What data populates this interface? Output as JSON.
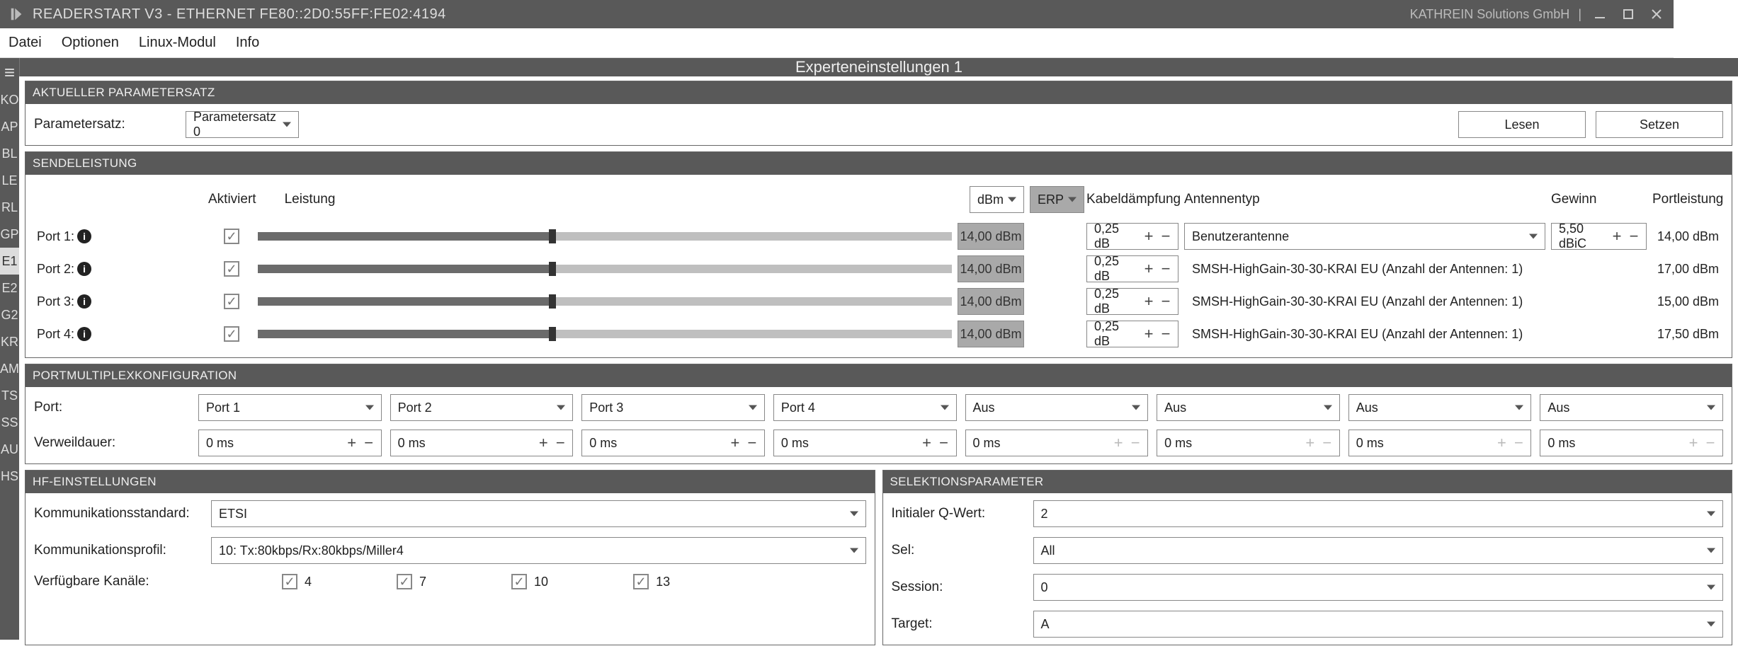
{
  "title": "READERSTART V3 - ETHERNET FE80::2D0:55FF:FE02:4194",
  "vendor": "KATHREIN Solutions GmbH",
  "menu": {
    "items": [
      "Datei",
      "Optionen",
      "Linux-Modul",
      "Info"
    ]
  },
  "sidebar": {
    "tabs": [
      "KO",
      "AP",
      "BL",
      "LE",
      "RL",
      "GP",
      "E1",
      "E2",
      "G2",
      "KR",
      "AM",
      "TS",
      "SS",
      "AU",
      "HS"
    ],
    "active": "E1"
  },
  "page_title": "Experteneinstellungen 1",
  "param": {
    "section": "AKTUELLER PARAMETERSATZ",
    "label": "Parametersatz:",
    "value": "Parametersatz 0",
    "read_btn": "Lesen",
    "set_btn": "Setzen"
  },
  "send": {
    "section": "SENDELEISTUNG",
    "head": {
      "aktiviert": "Aktiviert",
      "leistung": "Leistung",
      "unit": "dBm",
      "mode": "ERP",
      "cable": "Kabeldämpfung",
      "anttype": "Antennentyp",
      "gain": "Gewinn",
      "portpower": "Portleistung"
    },
    "slider": {
      "min": 0,
      "max": 33,
      "fill_color": "#6b6b6b",
      "track_color": "#bfbfbf",
      "thumb_color": "#333333"
    },
    "rows": [
      {
        "label": "Port 1:",
        "active": true,
        "value": 14.0,
        "dbm": "14,00 dBm",
        "cable": "0,25 dB",
        "antenna_is_select": true,
        "antenna": "Benutzerantenne",
        "gain": "5,50 dBiC",
        "portpower": "14,00 dBm"
      },
      {
        "label": "Port 2:",
        "active": true,
        "value": 14.0,
        "dbm": "14,00 dBm",
        "cable": "0,25 dB",
        "antenna_is_select": false,
        "antenna": "SMSH-HighGain-30-30-KRAI EU (Anzahl der Antennen: 1)",
        "gain": "",
        "portpower": "17,00 dBm"
      },
      {
        "label": "Port 3:",
        "active": true,
        "value": 14.0,
        "dbm": "14,00 dBm",
        "cable": "0,25 dB",
        "antenna_is_select": false,
        "antenna": "SMSH-HighGain-30-30-KRAI EU (Anzahl der Antennen: 1)",
        "gain": "",
        "portpower": "15,00 dBm"
      },
      {
        "label": "Port 4:",
        "active": true,
        "value": 14.0,
        "dbm": "14,00 dBm",
        "cable": "0,25 dB",
        "antenna_is_select": false,
        "antenna": "SMSH-HighGain-30-30-KRAI EU (Anzahl der Antennen: 1)",
        "gain": "",
        "portpower": "17,50 dBm"
      }
    ]
  },
  "mux": {
    "section": "PORTMULTIPLEXKONFIGURATION",
    "port_label": "Port:",
    "dwell_label": "Verweildauer:",
    "ports": [
      "Port 1",
      "Port 2",
      "Port 3",
      "Port 4",
      "Aus",
      "Aus",
      "Aus",
      "Aus"
    ],
    "dwell": [
      "0 ms",
      "0 ms",
      "0 ms",
      "0 ms",
      "0 ms",
      "0 ms",
      "0 ms",
      "0 ms"
    ],
    "dwell_editable": [
      true,
      true,
      true,
      true,
      false,
      false,
      false,
      false
    ]
  },
  "hf": {
    "section": "HF-EINSTELLUNGEN",
    "std_label": "Kommunikationsstandard:",
    "std_value": "ETSI",
    "profile_label": "Kommunikationsprofil:",
    "profile_value": "10: Tx:80kbps/Rx:80kbps/Miller4",
    "channels_label": "Verfügbare Kanäle:",
    "channels": [
      {
        "label": "4",
        "checked": true
      },
      {
        "label": "7",
        "checked": true
      },
      {
        "label": "10",
        "checked": true
      },
      {
        "label": "13",
        "checked": true
      }
    ]
  },
  "sel": {
    "section": "SELEKTIONSPARAMETER",
    "q_label": "Initialer Q-Wert:",
    "q_value": "2",
    "sel_label": "Sel:",
    "sel_value": "All",
    "session_label": "Session:",
    "session_value": "0",
    "target_label": "Target:",
    "target_value": "A"
  }
}
